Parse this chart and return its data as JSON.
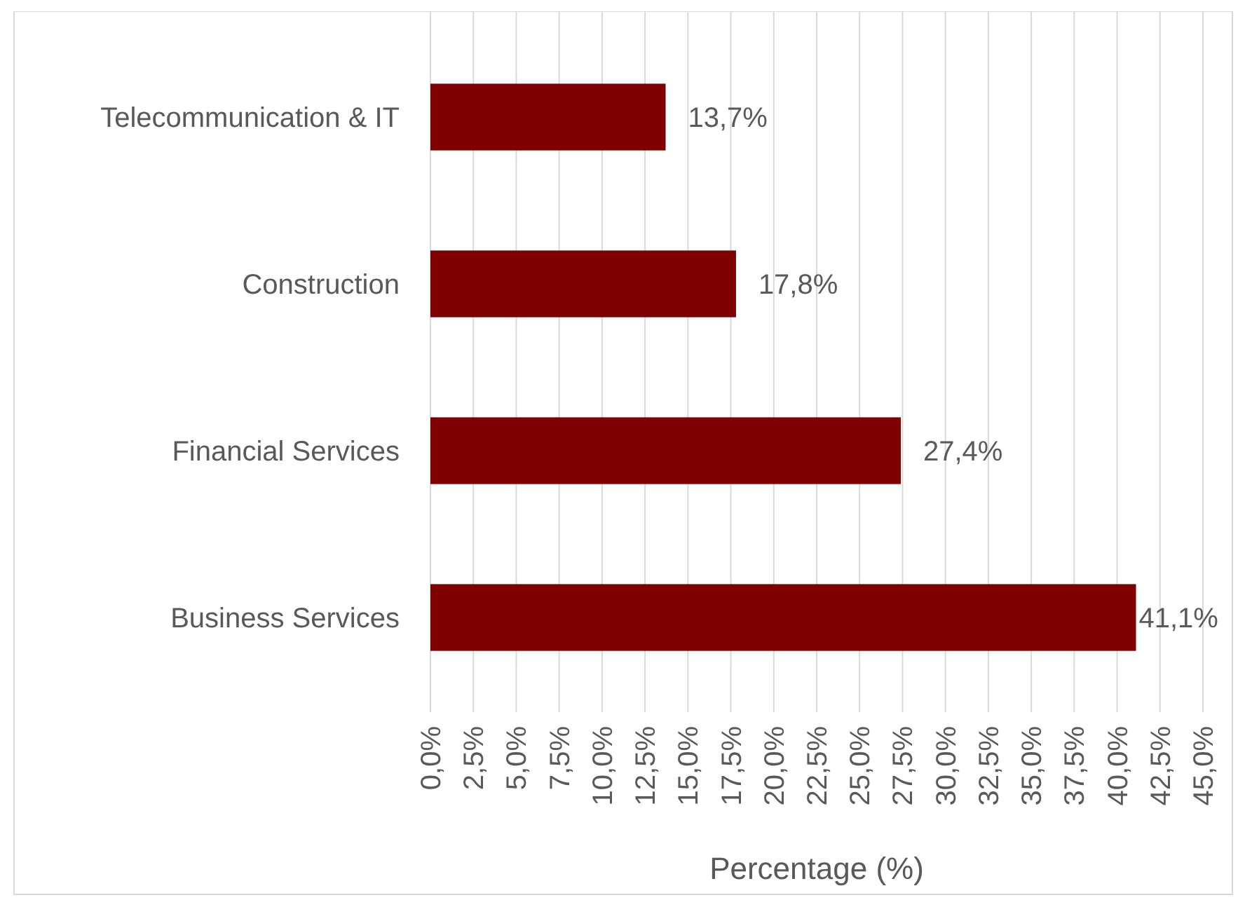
{
  "chart_data": {
    "type": "bar",
    "orientation": "horizontal",
    "xlabel": "Percentage (%)",
    "categories": [
      "Telecommunication & IT",
      "Construction",
      "Financial Services",
      "Business Services"
    ],
    "values": [
      13.7,
      17.8,
      27.4,
      41.1
    ],
    "color": "#7f0000",
    "value_labels": [
      "13,7%",
      "17,8%",
      "27,4%",
      "41,1%"
    ],
    "xlim": [
      0,
      45
    ],
    "xticks": [
      {
        "value": 0,
        "label": "0,0%"
      },
      {
        "value": 2.5,
        "label": "2,5%"
      },
      {
        "value": 5,
        "label": "5,0%"
      },
      {
        "value": 7.5,
        "label": "7,5%"
      },
      {
        "value": 10,
        "label": "10,0%"
      },
      {
        "value": 12.5,
        "label": "12,5%"
      },
      {
        "value": 15,
        "label": "15,0%"
      },
      {
        "value": 17.5,
        "label": "17,5%"
      },
      {
        "value": 20,
        "label": "20,0%"
      },
      {
        "value": 22.5,
        "label": "22,5%"
      },
      {
        "value": 25,
        "label": "25,0%"
      },
      {
        "value": 27.5,
        "label": "27,5%"
      },
      {
        "value": 30,
        "label": "30,0%"
      },
      {
        "value": 32.5,
        "label": "32,5%"
      },
      {
        "value": 35,
        "label": "35,0%"
      },
      {
        "value": 37.5,
        "label": "37,5%"
      },
      {
        "value": 40,
        "label": "40,0%"
      },
      {
        "value": 42.5,
        "label": "42,5%"
      },
      {
        "value": 45,
        "label": "45,0%"
      }
    ],
    "grid": "x"
  }
}
